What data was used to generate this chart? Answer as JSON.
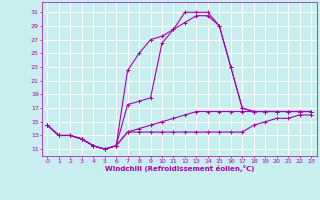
{
  "title": "",
  "xlabel": "Windchill (Refroidissement éolien,°C)",
  "bg_color": "#c8eef0",
  "grid_color": "#ffffff",
  "line_color": "#aa00aa",
  "x_ticks": [
    0,
    1,
    2,
    3,
    4,
    5,
    6,
    7,
    8,
    9,
    10,
    11,
    12,
    13,
    14,
    15,
    16,
    17,
    18,
    19,
    20,
    21,
    22,
    23
  ],
  "y_ticks": [
    11,
    13,
    15,
    17,
    19,
    21,
    23,
    25,
    27,
    29,
    31
  ],
  "ylim": [
    10.0,
    32.5
  ],
  "xlim": [
    -0.5,
    23.5
  ],
  "lines": [
    {
      "x": [
        0,
        1,
        2,
        3,
        4,
        5,
        6,
        7,
        8,
        9,
        10,
        11,
        12,
        13,
        14,
        15,
        16,
        17,
        18,
        19,
        20,
        21,
        22,
        23
      ],
      "y": [
        14.5,
        13.0,
        13.0,
        12.5,
        11.5,
        11.0,
        11.5,
        17.5,
        18.0,
        18.5,
        26.5,
        28.5,
        31.0,
        31.0,
        31.0,
        29.0,
        23.0,
        17.0,
        16.5,
        16.5,
        16.5,
        16.5,
        16.5,
        16.5
      ]
    },
    {
      "x": [
        0,
        1,
        2,
        3,
        4,
        5,
        6,
        7,
        8,
        9,
        10,
        11,
        12,
        13,
        14,
        15,
        16,
        17,
        18,
        19,
        20,
        21,
        22,
        23
      ],
      "y": [
        14.5,
        13.0,
        13.0,
        12.5,
        11.5,
        11.0,
        11.5,
        13.5,
        13.5,
        13.5,
        13.5,
        13.5,
        13.5,
        13.5,
        13.5,
        13.5,
        13.5,
        13.5,
        14.5,
        15.0,
        15.5,
        15.5,
        16.0,
        16.0
      ]
    },
    {
      "x": [
        0,
        1,
        2,
        3,
        4,
        5,
        6,
        7,
        8,
        9,
        10,
        11,
        12,
        13,
        14,
        15,
        16,
        17,
        18,
        19,
        20,
        21,
        22,
        23
      ],
      "y": [
        14.5,
        13.0,
        13.0,
        12.5,
        11.5,
        11.0,
        11.5,
        13.5,
        14.0,
        14.5,
        15.0,
        15.5,
        16.0,
        16.5,
        16.5,
        16.5,
        16.5,
        16.5,
        16.5,
        16.5,
        16.5,
        16.5,
        16.5,
        16.5
      ]
    },
    {
      "x": [
        0,
        1,
        2,
        3,
        4,
        5,
        6,
        7,
        8,
        9,
        10,
        11,
        12,
        13,
        14,
        15,
        16,
        17,
        18,
        19,
        20,
        21,
        22,
        23
      ],
      "y": [
        14.5,
        13.0,
        13.0,
        12.5,
        11.5,
        11.0,
        11.5,
        22.5,
        25.0,
        27.0,
        27.5,
        28.5,
        29.5,
        30.5,
        30.5,
        29.0,
        23.0,
        17.0,
        16.5,
        16.5,
        16.5,
        16.5,
        16.5,
        16.5
      ]
    }
  ]
}
